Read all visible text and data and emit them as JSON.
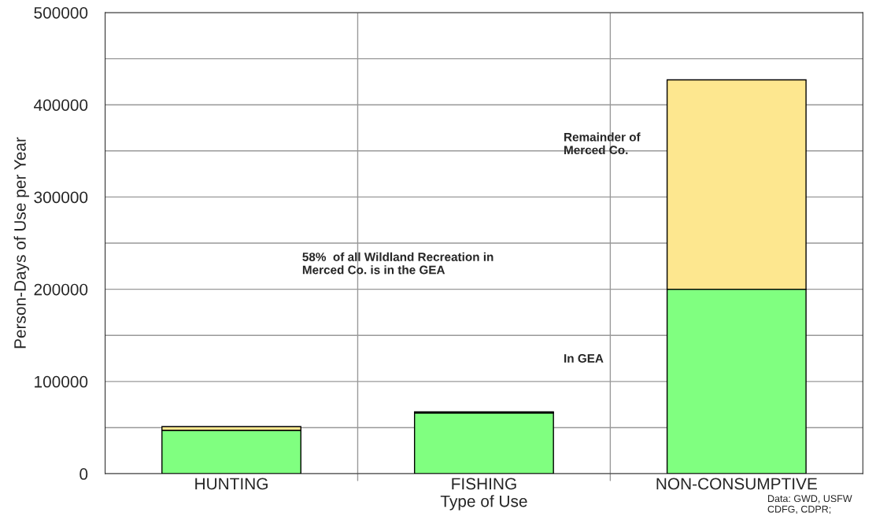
{
  "chart_data": {
    "type": "bar",
    "stacked": true,
    "xlabel": "Type of Use",
    "ylabel": "Person-Days of Use per Year",
    "categories": [
      "HUNTING",
      "FISHING",
      "NON-CONSUMPTIVE"
    ],
    "series": [
      {
        "color": "#80ff80",
        "values": [
          47000,
          66000,
          200000
        ]
      },
      {
        "color": "#fde78f",
        "values": [
          4000,
          1000,
          227000
        ]
      }
    ],
    "ylim": [
      0,
      500000
    ],
    "yticks": [
      0,
      {
        "value": 50000,
        "label": null
      },
      100000,
      {
        "value": 150000,
        "label": null
      },
      200000,
      {
        "value": 250000,
        "label": null
      },
      300000,
      {
        "value": 350000,
        "label": null
      },
      400000,
      {
        "value": 450000,
        "label": null
      },
      500000
    ],
    "grid": true,
    "annotations": [
      "Remainder of\nMerced Co.",
      "58%  of all Wildland Recreation in\nMerced Co. is in the GEA",
      "In GEA",
      "Data: GWD, USFW\nCDFG, CDPR;"
    ]
  }
}
